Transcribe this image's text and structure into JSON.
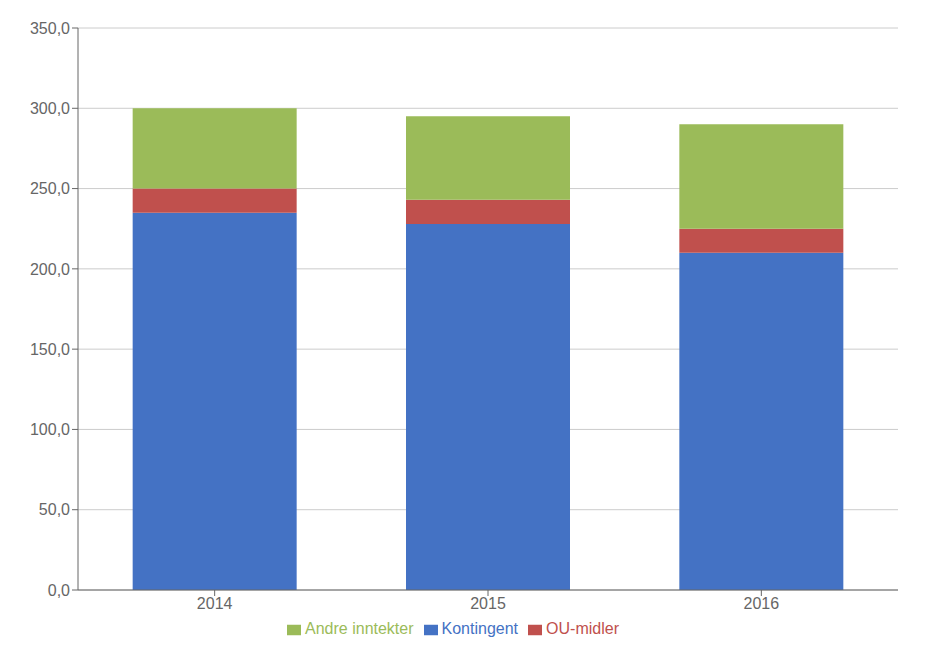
{
  "chart_data": {
    "type": "bar",
    "categories": [
      "2014",
      "2015",
      "2016"
    ],
    "series": [
      {
        "name": "Kontingent",
        "color": "#4472C4",
        "values": [
          235,
          228,
          210
        ]
      },
      {
        "name": "OU-midler",
        "color": "#C0504D",
        "values": [
          15,
          15,
          15
        ]
      },
      {
        "name": "Andre inntekter",
        "color": "#9BBB59",
        "values": [
          50,
          52,
          65
        ]
      }
    ],
    "stacked": true,
    "ylim": [
      0,
      350
    ],
    "yticks": [
      {
        "value": 0,
        "label": "0,0"
      },
      {
        "value": 50,
        "label": "50,0"
      },
      {
        "value": 100,
        "label": "100,0"
      },
      {
        "value": 150,
        "label": "150,0"
      },
      {
        "value": 200,
        "label": "200,0"
      },
      {
        "value": 250,
        "label": "250,0"
      },
      {
        "value": 300,
        "label": "300,0"
      },
      {
        "value": 350,
        "label": "350,0"
      }
    ],
    "grid": true,
    "legend": "bottom"
  }
}
